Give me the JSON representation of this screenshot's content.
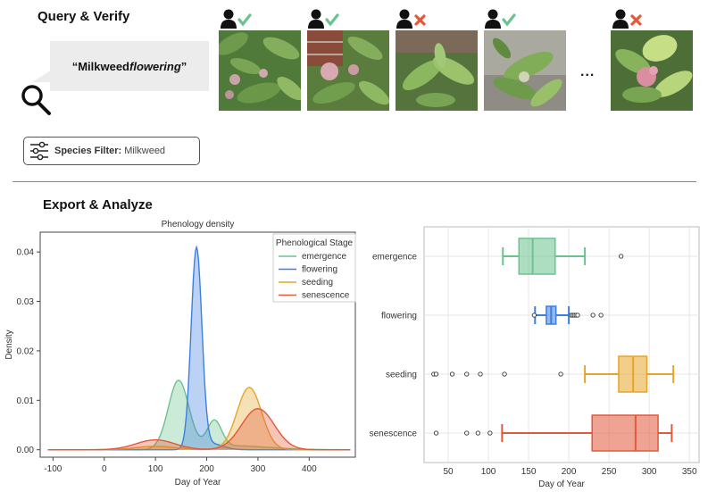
{
  "query_section": {
    "title": "Query & Verify",
    "query_prefix": "“Milkweed ",
    "query_emph": "flowering",
    "query_suffix": "”",
    "ellipsis": "...",
    "photos": [
      {
        "verified": true,
        "status_icon": "check-icon"
      },
      {
        "verified": true,
        "status_icon": "check-icon"
      },
      {
        "verified": false,
        "status_icon": "cross-icon"
      },
      {
        "verified": true,
        "status_icon": "check-icon"
      },
      {
        "verified": false,
        "status_icon": "cross-icon"
      }
    ],
    "filter": {
      "label": "Species Filter:",
      "value": "Milkweed"
    }
  },
  "export_section": {
    "title": "Export & Analyze"
  },
  "colors": {
    "emergence": "#6cc28f",
    "flowering": "#3d7fe0",
    "seeding": "#e6a52a",
    "senescence": "#e2583a",
    "check": "#6cc28f",
    "cross": "#e05a3c"
  },
  "chart_data": [
    {
      "type": "area",
      "title": "Phenology density",
      "xlabel": "Day of Year",
      "ylabel": "Density",
      "xlim": [
        -125,
        490
      ],
      "ylim": [
        -0.0015,
        0.044
      ],
      "xticks": [
        -100,
        0,
        100,
        200,
        300,
        400
      ],
      "yticks": [
        0.0,
        0.01,
        0.02,
        0.03,
        0.04
      ],
      "ytick_labels": [
        "0.00",
        "0.01",
        "0.02",
        "0.03",
        "0.04"
      ],
      "grid": false,
      "legend": {
        "title": "Phenological Stage",
        "placement": "top-right"
      },
      "series": [
        {
          "name": "emergence",
          "components": [
            {
              "mean": 145,
              "sd": 20,
              "peak": 0.0138
            },
            {
              "mean": 215,
              "sd": 14,
              "peak": 0.0053
            },
            {
              "mean": 250,
              "sd": 70,
              "peak": 0.0008
            }
          ]
        },
        {
          "name": "flowering",
          "components": [
            {
              "mean": 180,
              "sd": 10.5,
              "peak": 0.0405
            },
            {
              "mean": 210,
              "sd": 22,
              "peak": 0.0012
            }
          ]
        },
        {
          "name": "seeding",
          "components": [
            {
              "mean": 283,
              "sd": 24,
              "peak": 0.0126
            },
            {
              "mean": 100,
              "sd": 38,
              "peak": 0.0007
            }
          ]
        },
        {
          "name": "senescence",
          "components": [
            {
              "mean": 300,
              "sd": 32,
              "peak": 0.0083
            },
            {
              "mean": 100,
              "sd": 38,
              "peak": 0.002
            }
          ]
        }
      ]
    },
    {
      "type": "box",
      "xlabel": "Day of Year",
      "xlim": [
        20,
        362
      ],
      "xticks": [
        50,
        100,
        150,
        200,
        250,
        300,
        350
      ],
      "grid": true,
      "categories": [
        "emergence",
        "flowering",
        "seeding",
        "senescence"
      ],
      "boxes": [
        {
          "name": "emergence",
          "whisker_low": 118,
          "q1": 138,
          "median": 155,
          "q3": 183,
          "whisker_high": 220,
          "outliers": [
            265
          ]
        },
        {
          "name": "flowering",
          "whisker_low": 158,
          "q1": 172,
          "median": 178,
          "q3": 184,
          "whisker_high": 200,
          "outliers": [
            157,
            203,
            205,
            207,
            209,
            211,
            230,
            240
          ]
        },
        {
          "name": "seeding",
          "whisker_low": 220,
          "q1": 262,
          "median": 280,
          "q3": 297,
          "whisker_high": 330,
          "outliers": [
            32,
            35,
            55,
            73,
            90,
            120,
            190
          ]
        },
        {
          "name": "senescence",
          "whisker_low": 117,
          "q1": 229,
          "median": 283,
          "q3": 311,
          "whisker_high": 328,
          "outliers": [
            35,
            73,
            87,
            102
          ]
        }
      ]
    }
  ]
}
